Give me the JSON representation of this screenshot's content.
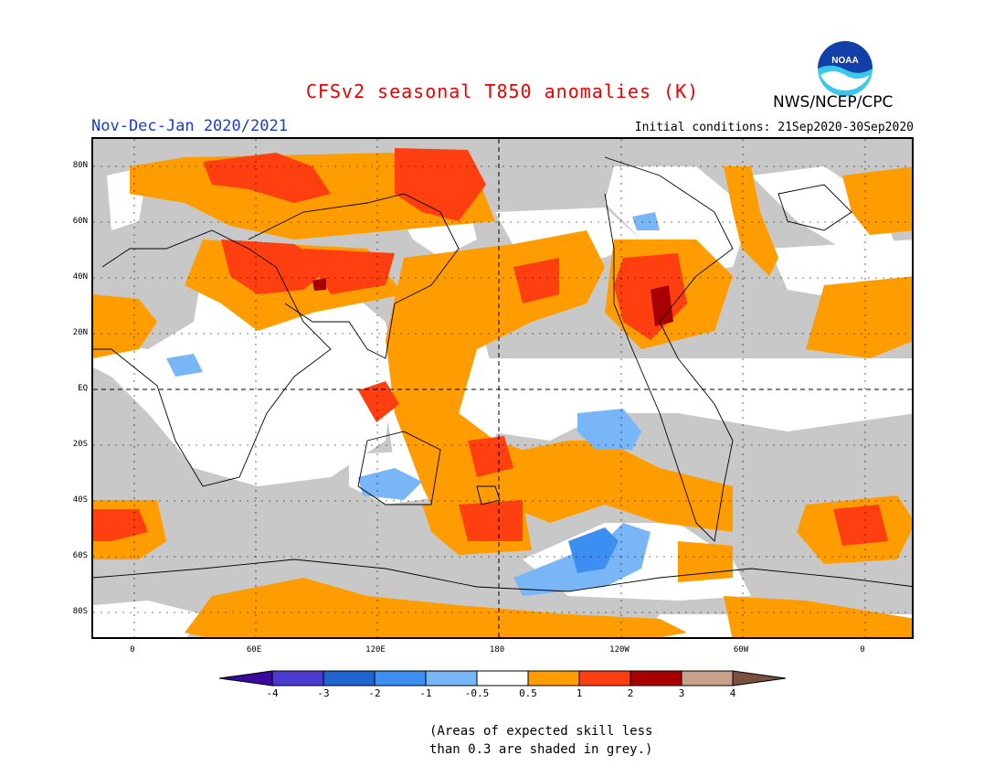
{
  "title": "CFSv2 seasonal T850 anomalies (K)",
  "agency": "NWS/NCEP/CPC",
  "period": "Nov-Dec-Jan 2020/2021",
  "initial_conditions": "Initial conditions: 21Sep2020-30Sep2020",
  "logo_text": "NOAA",
  "colors": {
    "title": "#ee0000",
    "period": "#1a3ad6",
    "grey_low_skill": "#c8c8c8",
    "scale": [
      "#3a0aa0",
      "#4a3ad0",
      "#1f64d0",
      "#3c8ef0",
      "#78b6f8",
      "#ffffff",
      "#ff9c00",
      "#ff3f10",
      "#a80000",
      "#c8a08c",
      "#7a5040"
    ]
  },
  "lat_labels": [
    "80N",
    "60N",
    "40N",
    "20N",
    "EQ",
    "20S",
    "40S",
    "60S",
    "80S"
  ],
  "lon_labels": [
    "0",
    "60E",
    "120E",
    "180",
    "120W",
    "60W",
    "0"
  ],
  "colorbar_labels": [
    "-4",
    "-3",
    "-2",
    "-1",
    "-0.5",
    "0.5",
    "1",
    "2",
    "3",
    "4"
  ],
  "footnote_line1": "(Areas of expected skill less",
  "footnote_line2": "than 0.3 are shaded in grey.)"
}
